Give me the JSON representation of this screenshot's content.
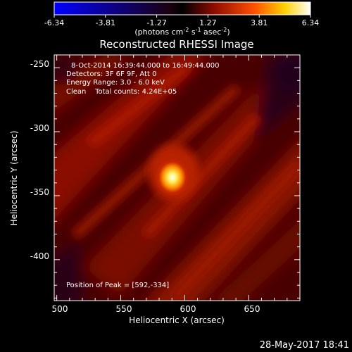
{
  "chart_data": {
    "type": "heatmap",
    "title": "Reconstructed RHESSI Image",
    "xlabel": "Heliocentric X (arcsec)",
    "ylabel": "Heliocentric Y (arcsec)",
    "xlim": [
      498,
      690
    ],
    "ylim": [
      -432,
      -240
    ],
    "xticks": [
      500,
      550,
      600,
      650
    ],
    "yticks": [
      -250,
      -300,
      -350,
      -400
    ],
    "colorbar": {
      "ticks": [
        "-6.34",
        "-3.81",
        "-1.27",
        "1.27",
        "3.81",
        "6.34"
      ],
      "label_main": "(photons cm",
      "label_exp1": "-2",
      "label_mid": " s",
      "label_exp2": "-1",
      "label_end": " asec",
      "label_exp3": "-2",
      "label_close": ")",
      "range": [
        -6.34,
        6.34
      ],
      "colors": [
        "#0000ff",
        "#000000",
        "#c81e00",
        "#ffd200",
        "#ffffff"
      ]
    },
    "annotations": [
      "8-Oct-2014 16:39:44.000 to 16:49:44.000",
      "Detectors: 3F 6F 9F, Att 0",
      "Energy Range: 3.0 - 6.0 keV",
      "Clean    Total counts: 4.24E+05"
    ],
    "peak_label": "Position of Peak = [592,-334]",
    "peak": {
      "x": 592,
      "y": -334,
      "value": 6.34
    },
    "date_stamp": "28-May-2017 18:41"
  }
}
